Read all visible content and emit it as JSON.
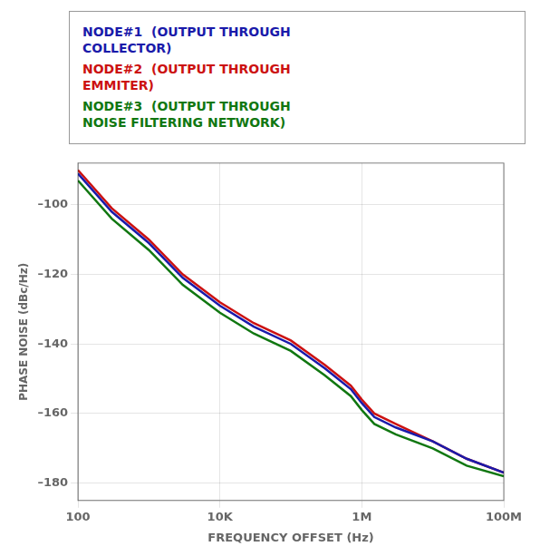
{
  "chart_data": {
    "type": "line",
    "xlabel": "FREQUENCY OFFSET (Hz)",
    "ylabel": "PHASE NOISE (dBc/Hz)",
    "log": "x",
    "grid": true,
    "legend": "top",
    "xlim": [
      100,
      100000000
    ],
    "xticks": [
      {
        "value": 100,
        "label": "100"
      },
      {
        "value": 10000,
        "label": "10K"
      },
      {
        "value": 1000000,
        "label": "1M"
      },
      {
        "value": 100000000,
        "label": "100M"
      }
    ],
    "ylim": [
      -185,
      -88
    ],
    "yticks": [
      {
        "value": -180,
        "label": "–180"
      },
      {
        "value": -160,
        "label": "–160"
      },
      {
        "value": -140,
        "label": "–140"
      },
      {
        "value": -120,
        "label": "–120"
      },
      {
        "value": -100,
        "label": "–100"
      }
    ],
    "x": [
      100,
      300,
      1000,
      3000,
      10000,
      30000,
      100000,
      300000,
      700000,
      1000000,
      1500000,
      3000000,
      10000000,
      30000000,
      100000000
    ],
    "series": [
      {
        "name": "NODE#1  (OUTPUT THROUGH\nCOLLECTOR)",
        "color": "#1a1aaa",
        "values": [
          -91,
          -102,
          -111,
          -121,
          -129,
          -135,
          -140,
          -147,
          -153,
          -157,
          -161,
          -164,
          -168,
          -173,
          -177
        ]
      },
      {
        "name": "NODE#2  (OUTPUT THROUGH\nEMMITER)",
        "color": "#cc1111",
        "values": [
          -90,
          -101,
          -110,
          -120,
          -128,
          -134,
          -139,
          -146,
          -152,
          -156,
          -160,
          -163,
          -168,
          -173,
          -177
        ]
      },
      {
        "name": "NODE#3  (OUTPUT THROUGH\nNOISE FILTERING NETWORK)",
        "color": "#117711",
        "values": [
          -93,
          -104,
          -113,
          -123,
          -131,
          -137,
          -142,
          -149,
          -155,
          -159,
          -163,
          -166,
          -170,
          -175,
          -178
        ]
      }
    ]
  }
}
